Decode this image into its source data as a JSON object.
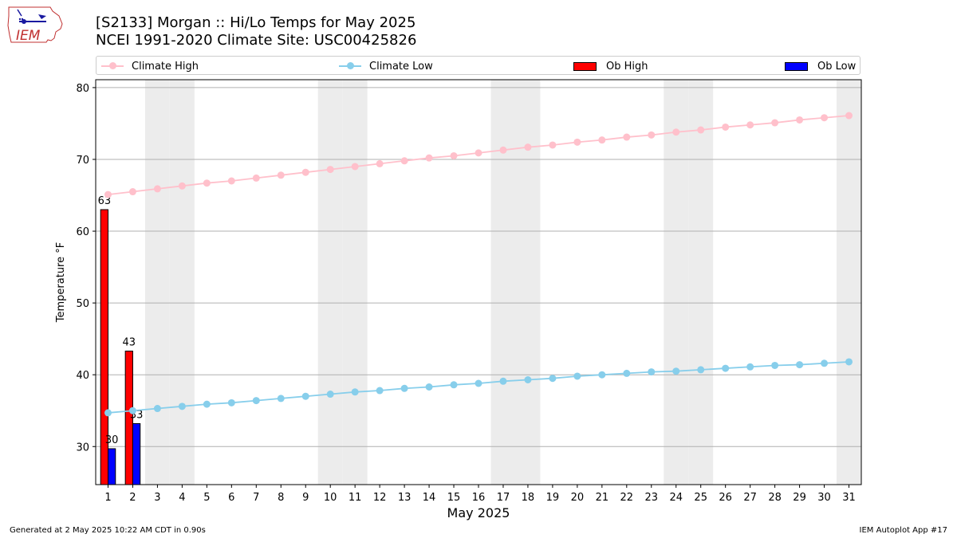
{
  "header": {
    "logo_text": "IEM",
    "title_line1": "[S2133] Morgan :: Hi/Lo Temps for May 2025",
    "title_line2": "NCEI 1991-2020 Climate Site: USC00425826"
  },
  "legend": {
    "climate_high": "Climate High",
    "climate_low": "Climate Low",
    "ob_high": "Ob High",
    "ob_low": "Ob Low"
  },
  "colors": {
    "climate_high": "#ffc0cb",
    "climate_low": "#87ceeb",
    "ob_high": "#ff0000",
    "ob_low": "#0000ff",
    "weekend_band": "#ececec",
    "grid": "#b0b0b0"
  },
  "footer": {
    "left": "Generated at 2 May 2025 10:22 AM CDT in 0.90s",
    "right": "IEM Autoplot App #17"
  },
  "chart_data": {
    "type": "bar",
    "xlabel": "May 2025",
    "ylabel": "Temperature °F",
    "ylim": [
      24.7,
      81.1
    ],
    "yticks": [
      30,
      40,
      50,
      60,
      70,
      80
    ],
    "grid": true,
    "legend_position": "top",
    "x": [
      1,
      2,
      3,
      4,
      5,
      6,
      7,
      8,
      9,
      10,
      11,
      12,
      13,
      14,
      15,
      16,
      17,
      18,
      19,
      20,
      21,
      22,
      23,
      24,
      25,
      26,
      27,
      28,
      29,
      30,
      31
    ],
    "weekend_days": [
      3,
      4,
      10,
      11,
      17,
      18,
      24,
      25,
      31
    ],
    "climate_high": [
      65.1,
      65.5,
      65.9,
      66.3,
      66.7,
      67.0,
      67.4,
      67.8,
      68.2,
      68.6,
      69.0,
      69.4,
      69.8,
      70.2,
      70.5,
      70.9,
      71.3,
      71.7,
      72.0,
      72.4,
      72.7,
      73.1,
      73.4,
      73.8,
      74.1,
      74.5,
      74.8,
      75.1,
      75.5,
      75.8,
      76.1
    ],
    "climate_low": [
      34.7,
      35.0,
      35.3,
      35.6,
      35.9,
      36.1,
      36.4,
      36.7,
      37.0,
      37.3,
      37.6,
      37.8,
      38.1,
      38.3,
      38.6,
      38.8,
      39.1,
      39.3,
      39.5,
      39.8,
      40.0,
      40.2,
      40.4,
      40.5,
      40.7,
      40.9,
      41.1,
      41.3,
      41.4,
      41.6,
      41.8
    ],
    "ob_high": [
      {
        "day": 1,
        "value": 63,
        "label": "63"
      },
      {
        "day": 2,
        "value": 43.3,
        "label": "43"
      }
    ],
    "ob_low": [
      {
        "day": 1,
        "value": 29.7,
        "label": "30"
      },
      {
        "day": 2,
        "value": 33.2,
        "label": "33"
      }
    ]
  }
}
